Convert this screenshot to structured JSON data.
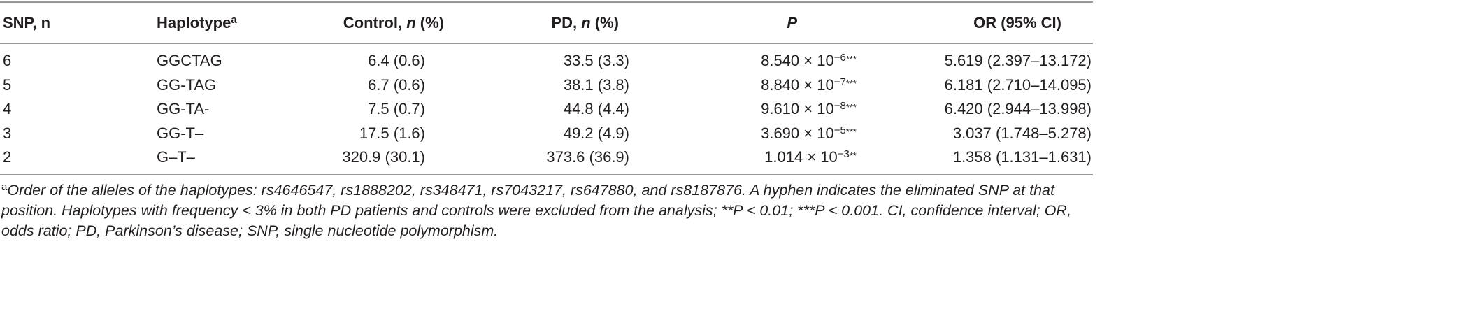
{
  "table": {
    "header": [
      [
        "SNP, n"
      ],
      [
        "Haplotype",
        "a"
      ],
      [
        "Control, ",
        "n",
        " (%)"
      ],
      [
        "PD, ",
        "n",
        " (%)"
      ],
      [
        "P"
      ],
      [
        "OR (95% CI)"
      ]
    ],
    "rows": [
      [
        "6",
        "GGCTAG",
        "6.4 (0.6)",
        "33.5 (3.3)",
        [
          "8.540 × 10",
          "−6",
          "***"
        ],
        "5.619 (2.397–13.172)"
      ],
      [
        "5",
        "GG-TAG",
        "6.7 (0.6)",
        "38.1 (3.8)",
        [
          "8.840 × 10",
          "−7",
          "***"
        ],
        "6.181 (2.710–14.095)"
      ],
      [
        "4",
        "GG-TA-",
        "7.5 (0.7)",
        "44.8 (4.4)",
        [
          "9.610 × 10",
          "−8",
          "***"
        ],
        "6.420 (2.944–13.998)"
      ],
      [
        "3",
        "GG-T–",
        "17.5 (1.6)",
        "49.2 (4.9)",
        [
          "3.690 × 10",
          "−5",
          "***"
        ],
        "3.037 (1.748–5.278)"
      ],
      [
        "2",
        "G–T–",
        "320.9 (30.1)",
        "373.6 (36.9)",
        [
          "1.014 × 10",
          "−3",
          "**"
        ],
        "1.358 (1.131–1.631)"
      ]
    ],
    "footnote": {
      "marker": "a",
      "text": "Order of the alleles of the haplotypes: rs4646547, rs1888202, rs348471, rs7043217, rs647880, and rs8187876. A hyphen indicates the eliminated SNP at that position. Haplotypes with frequency < 3% in both PD patients and controls were excluded from the analysis; **P < 0.01; ***P < 0.001. CI, confidence interval; OR, odds ratio; PD, Parkinson’s disease; SNP, single nucleotide polymorphism."
    }
  }
}
